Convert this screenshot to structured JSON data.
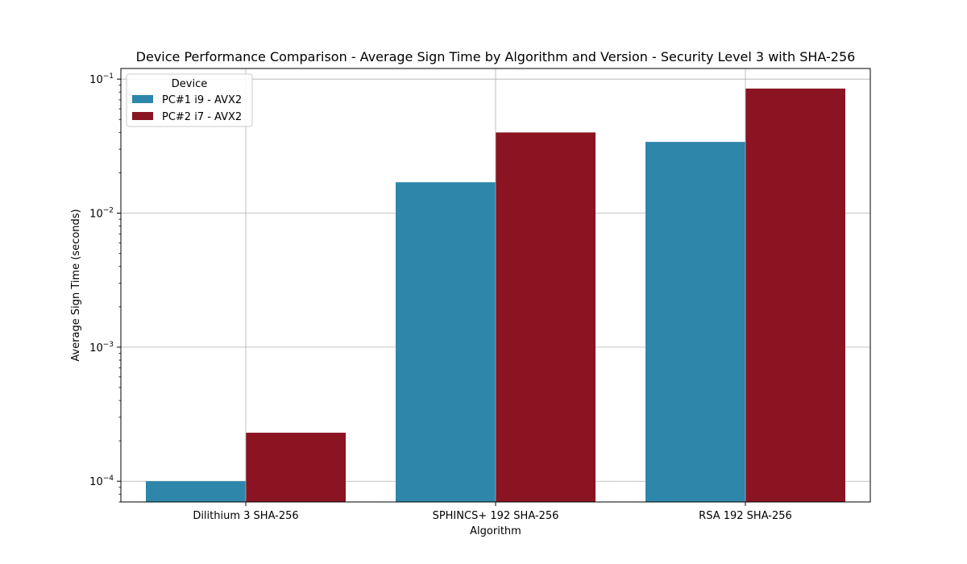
{
  "chart_data": {
    "type": "bar",
    "title": "Device Performance Comparison - Average Sign Time by Algorithm and Version - Security Level 3 with SHA-256",
    "xlabel": "Algorithm",
    "ylabel": "Average Sign Time (seconds)",
    "yscale": "log",
    "ylim": [
      7e-05,
      0.12
    ],
    "yticks": [
      {
        "value": 0.0001,
        "base": "10",
        "exp": "−4"
      },
      {
        "value": 0.001,
        "base": "10",
        "exp": "−3"
      },
      {
        "value": 0.01,
        "base": "10",
        "exp": "−2"
      },
      {
        "value": 0.1,
        "base": "10",
        "exp": "−1"
      }
    ],
    "grid": true,
    "legend_title": "Device",
    "legend_position": "top-left",
    "categories": [
      "Dilithium 3 SHA-256",
      "SPHINCS+ 192 SHA-256",
      "RSA 192 SHA-256"
    ],
    "series": [
      {
        "name": "PC#1 i9 - AVX2",
        "color": "#2e86ab",
        "values": [
          0.0001,
          0.017,
          0.034
        ]
      },
      {
        "name": "PC#2 i7 - AVX2",
        "color": "#8b1423",
        "values": [
          0.00023,
          0.04,
          0.085
        ]
      }
    ]
  }
}
